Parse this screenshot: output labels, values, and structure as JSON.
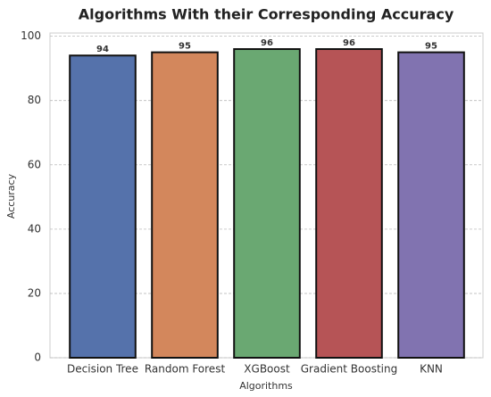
{
  "chart_data": {
    "type": "bar",
    "title": "Algorithms With their Corresponding Accuracy",
    "x_label": "Algorithms",
    "y_label": "Accuracy",
    "categories": [
      "Decision Tree",
      "Random Forest",
      "XGBoost",
      "Gradient Boosting",
      "KNN"
    ],
    "values": [
      94,
      95,
      96,
      96,
      95
    ],
    "colors": [
      "#5572ab",
      "#d3875c",
      "#6aa872",
      "#b65456",
      "#8173b0"
    ],
    "ylim": [
      0,
      101
    ],
    "yticks": [
      0,
      20,
      40,
      60,
      80,
      100
    ],
    "grid": true
  }
}
